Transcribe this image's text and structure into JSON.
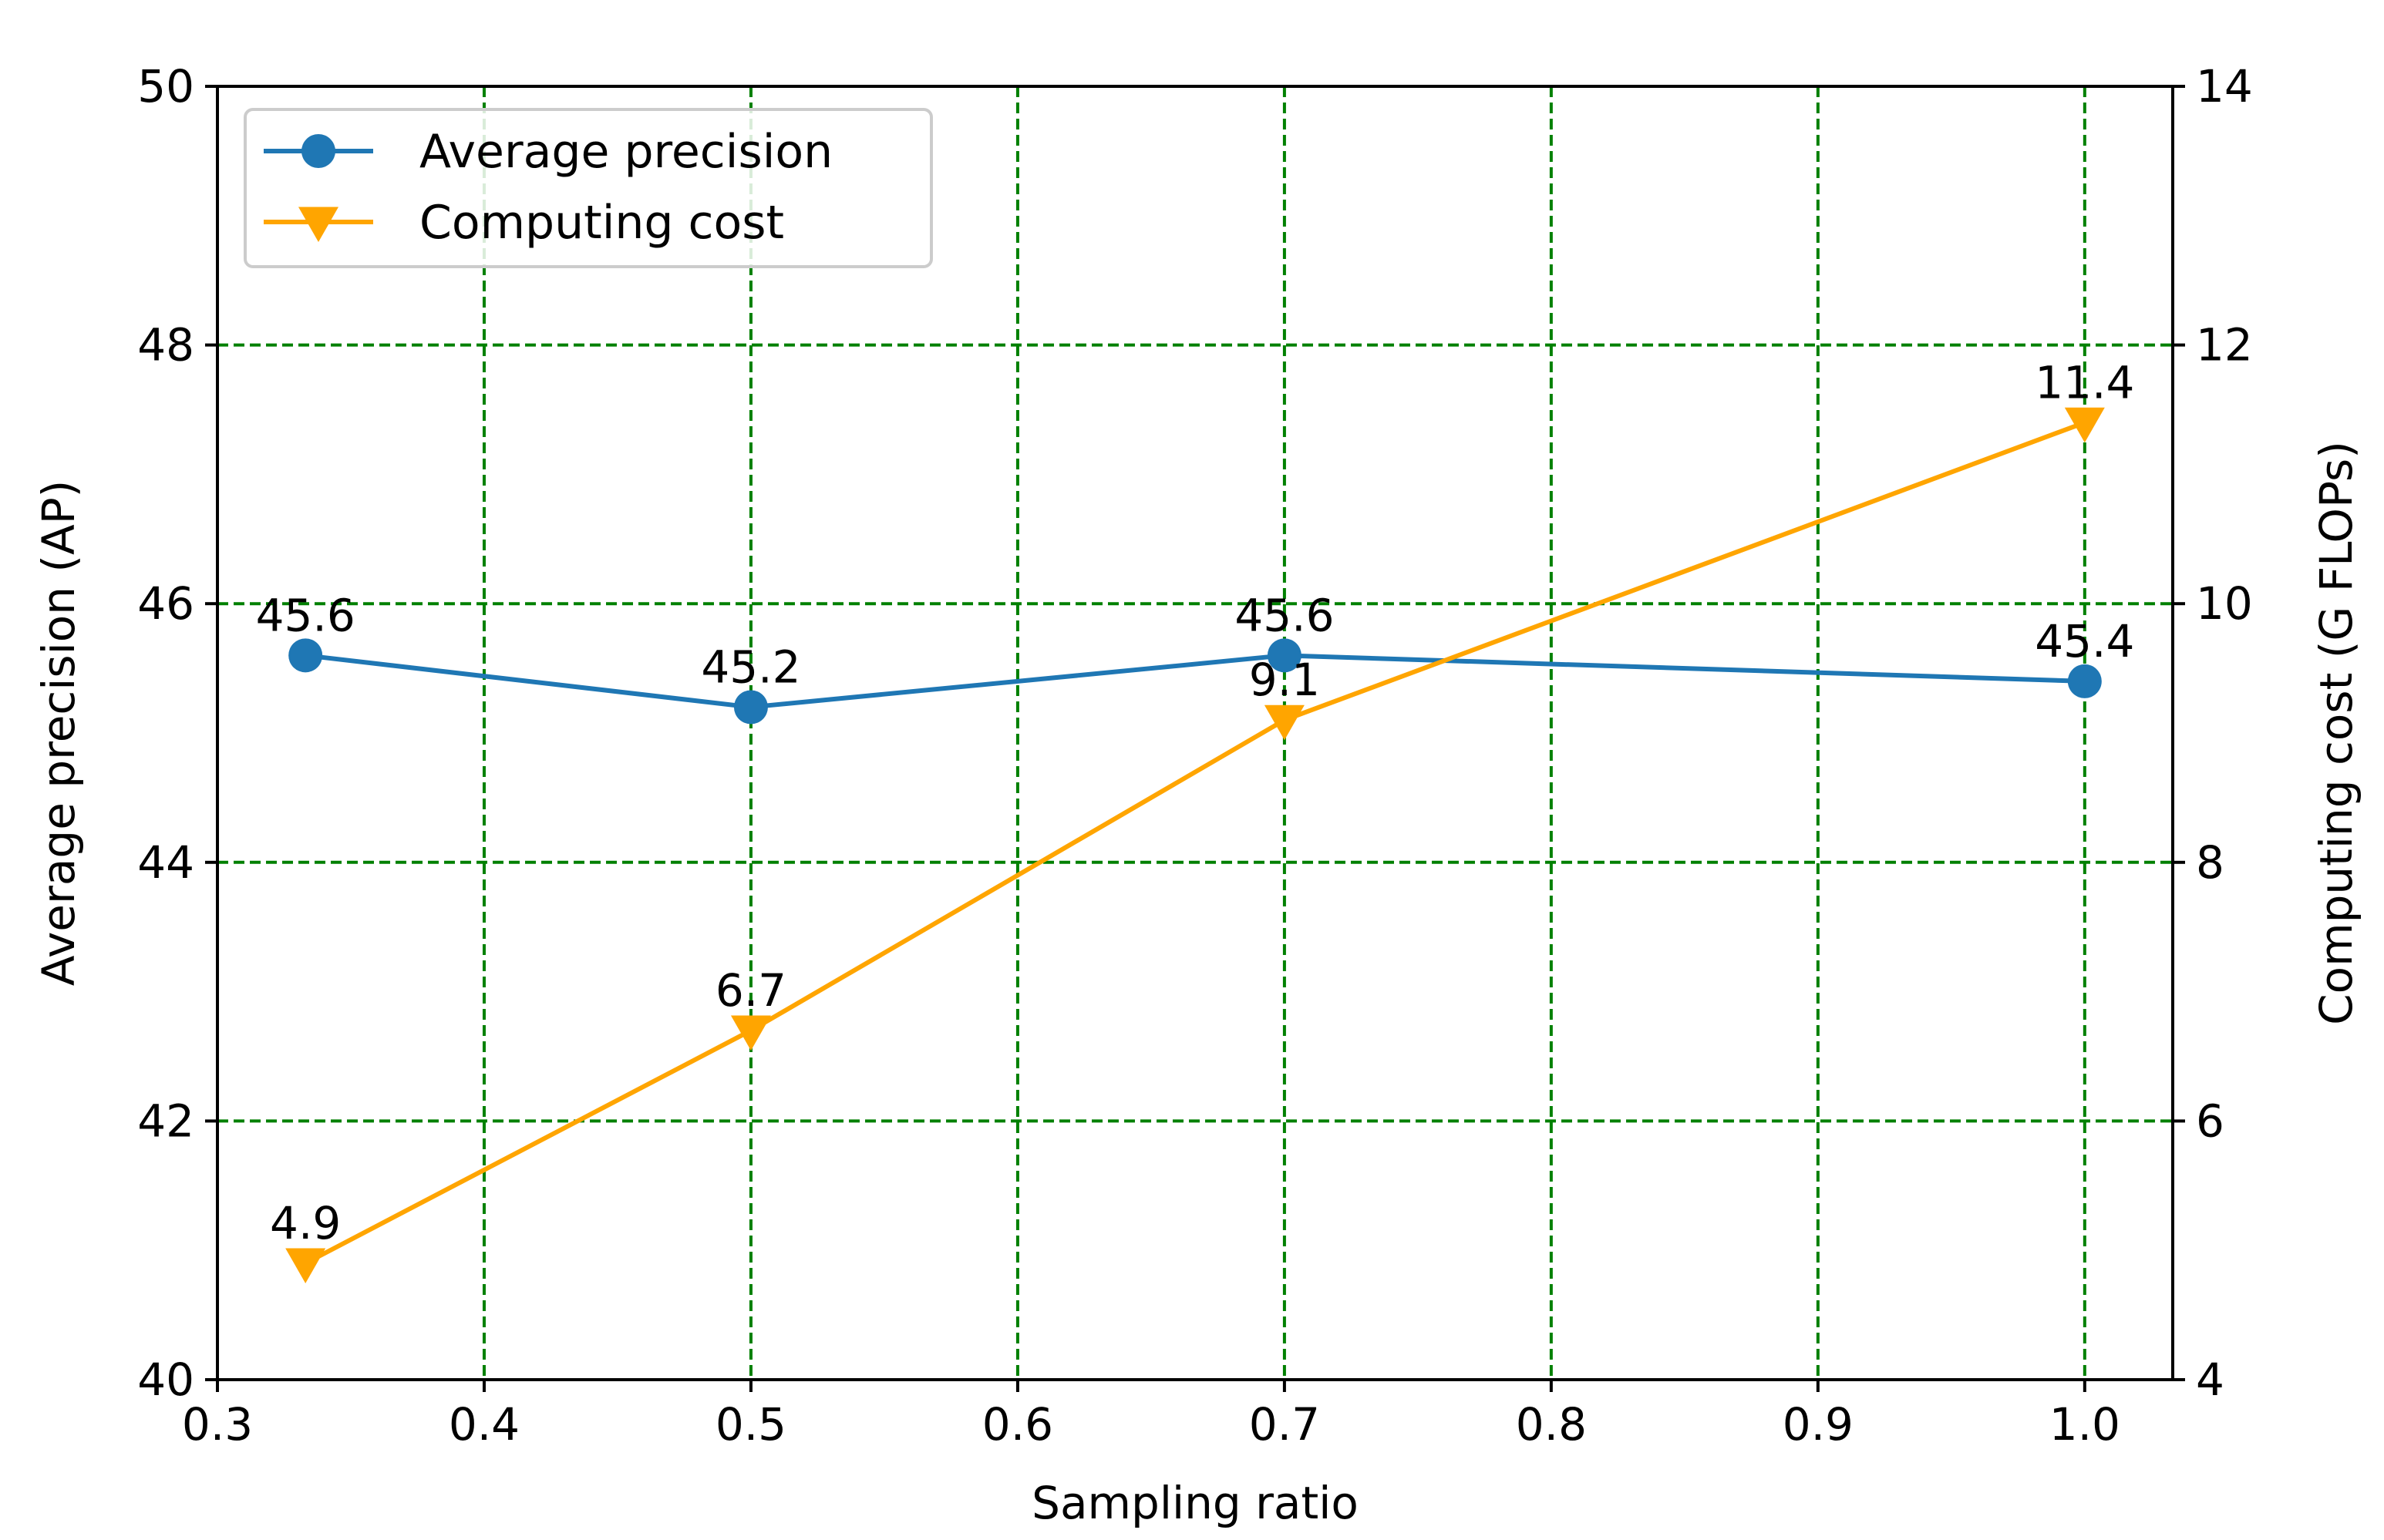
{
  "chart_data": {
    "type": "line",
    "title": "",
    "xlabel": "Sampling ratio",
    "ylabel": "Average precision (AP)",
    "y2label": "Computing cost (G FLOPs)",
    "xlim": [
      0.3,
      1.033
    ],
    "ylim": [
      40,
      50
    ],
    "y2lim": [
      4,
      14
    ],
    "xticks": [
      "0.3",
      "0.4",
      "0.5",
      "0.6",
      "0.7",
      "0.8",
      "0.9",
      "1.0"
    ],
    "xtick_values": [
      0.3,
      0.4,
      0.5,
      0.6,
      0.7,
      0.8,
      0.9,
      1.0
    ],
    "yticks": [
      "40",
      "42",
      "44",
      "46",
      "48",
      "50"
    ],
    "ytick_values": [
      40,
      42,
      44,
      46,
      48,
      50
    ],
    "y2ticks": [
      "4",
      "6",
      "8",
      "10",
      "12",
      "14"
    ],
    "y2tick_values": [
      4,
      6,
      8,
      10,
      12,
      14
    ],
    "grid": true,
    "legend_position": "top-left",
    "series": [
      {
        "name": "Average precision",
        "axis": "left",
        "color": "#1f77b4",
        "marker": "circle",
        "x": [
          0.333,
          0.5,
          0.7,
          1.0
        ],
        "values": [
          45.6,
          45.2,
          45.6,
          45.4
        ],
        "labels": [
          "45.6",
          "45.2",
          "45.6",
          "45.4"
        ]
      },
      {
        "name": "Computing cost",
        "axis": "right",
        "color": "#ffa500",
        "marker": "triangle-down",
        "x": [
          0.333,
          0.5,
          0.7,
          1.0
        ],
        "values": [
          4.9,
          6.7,
          9.1,
          11.4
        ],
        "labels": [
          "4.9",
          "6.7",
          "9.1",
          "11.4"
        ]
      }
    ]
  }
}
